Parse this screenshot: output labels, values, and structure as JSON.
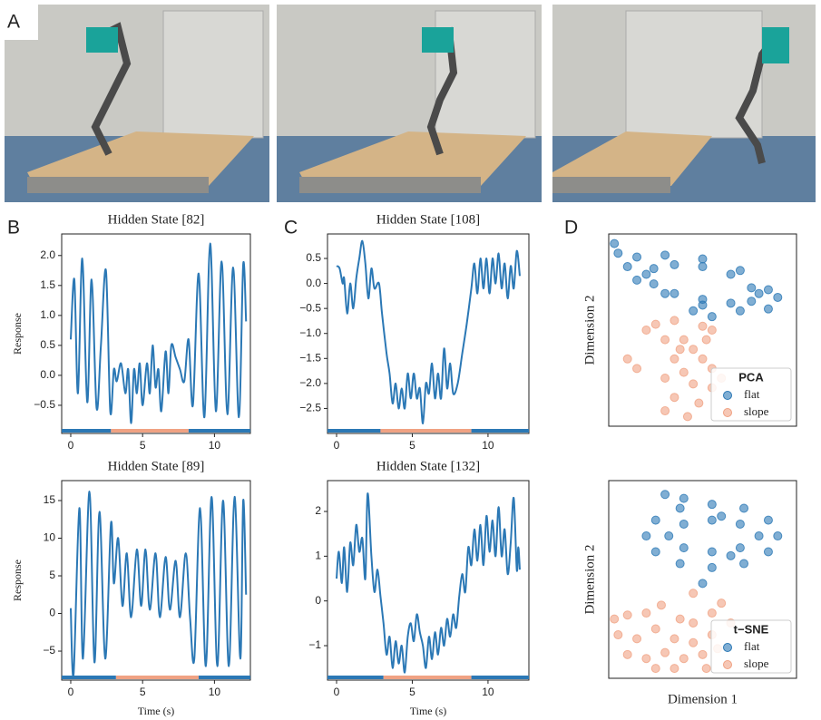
{
  "labels": [
    "A",
    "B",
    "C",
    "D"
  ],
  "chart_data": [
    {
      "type": "line",
      "title": "Hidden State [82]",
      "ylabel": "Response",
      "color": "#2b78b5",
      "x": [
        0,
        0.25,
        0.5,
        0.8,
        1.15,
        1.45,
        1.8,
        2.1,
        2.45,
        2.75,
        3.0,
        3.2,
        3.5,
        3.8,
        4.0,
        4.2,
        4.4,
        4.6,
        4.8,
        5.0,
        5.3,
        5.5,
        5.7,
        5.9,
        6.1,
        6.3,
        6.6,
        6.8,
        7.0,
        7.3,
        7.6,
        7.9,
        8.2,
        8.5,
        8.9,
        9.3,
        9.7,
        10.1,
        10.5,
        10.9,
        11.3,
        11.7,
        12.0,
        12.2
      ],
      "values": [
        0.6,
        1.6,
        -0.3,
        1.95,
        -0.45,
        1.6,
        -0.55,
        0.5,
        1.75,
        -0.6,
        0.1,
        -0.1,
        0.2,
        -0.3,
        0.1,
        -0.8,
        0.1,
        -0.3,
        0.2,
        -0.5,
        0.2,
        -0.3,
        0.5,
        -0.2,
        0.1,
        -0.6,
        0.4,
        -0.3,
        0.5,
        0.3,
        0.1,
        -0.1,
        0.6,
        -0.5,
        1.7,
        -0.7,
        2.2,
        -0.6,
        1.9,
        -0.65,
        1.8,
        -0.7,
        1.85,
        0.9
      ],
      "segments": [
        {
          "start": -0.63,
          "end": 2.8,
          "color": "#2b78b5"
        },
        {
          "start": 2.8,
          "end": 8.2,
          "color": "#f0a283"
        },
        {
          "start": 8.2,
          "end": 12.5,
          "color": "#2b78b5"
        }
      ],
      "xlim": [
        -0.63,
        12.5
      ],
      "ylim": [
        -0.97,
        2.36
      ],
      "xticks": [
        0,
        5,
        10
      ],
      "yticks": [
        {
          "value": -0.5,
          "label": "−0.5"
        },
        {
          "value": 0,
          "label": "0.0"
        },
        0.5,
        {
          "value": 1,
          "label": "1.0"
        },
        1.5,
        {
          "value": 2,
          "label": "2.0"
        }
      ]
    },
    {
      "type": "line",
      "title": "Hidden State [108]",
      "color": "#2b78b5",
      "x": [
        0,
        0.2,
        0.4,
        0.5,
        0.7,
        0.9,
        1.1,
        1.3,
        1.5,
        1.7,
        1.9,
        2.1,
        2.3,
        2.5,
        2.8,
        3.0,
        3.3,
        3.5,
        3.7,
        3.9,
        4.1,
        4.3,
        4.5,
        4.7,
        4.9,
        5.1,
        5.3,
        5.5,
        5.7,
        5.9,
        6.1,
        6.3,
        6.5,
        6.7,
        6.9,
        7.1,
        7.3,
        7.5,
        7.7,
        8.0,
        8.3,
        8.6,
        8.9,
        9.1,
        9.3,
        9.5,
        9.7,
        9.9,
        10.1,
        10.3,
        10.5,
        10.7,
        10.9,
        11.1,
        11.3,
        11.5,
        11.7,
        11.9,
        12.1
      ],
      "values": [
        0.35,
        0.3,
        0.0,
        0.1,
        -0.6,
        0.0,
        -0.5,
        0.1,
        0.5,
        0.85,
        0.4,
        -0.3,
        0.3,
        -0.1,
        0.0,
        -0.6,
        -1.4,
        -1.8,
        -2.4,
        -2.0,
        -2.5,
        -2.1,
        -2.5,
        -1.8,
        -2.3,
        -1.8,
        -2.3,
        -2.1,
        -2.8,
        -2.0,
        -2.2,
        -1.6,
        -2.3,
        -1.8,
        -2.3,
        -1.3,
        -2.1,
        -1.6,
        -2.2,
        -2.0,
        -1.4,
        -0.8,
        -0.1,
        0.4,
        -0.2,
        0.5,
        -0.1,
        0.5,
        -0.2,
        0.5,
        0.0,
        0.6,
        -0.1,
        0.4,
        -0.3,
        0.35,
        -0.1,
        0.65,
        0.15
      ],
      "segments": [
        {
          "start": -0.6,
          "end": 2.9,
          "color": "#2b78b5"
        },
        {
          "start": 2.9,
          "end": 8.9,
          "color": "#f0a283"
        },
        {
          "start": 8.9,
          "end": 12.7,
          "color": "#2b78b5"
        }
      ],
      "xlim": [
        -0.6,
        12.7
      ],
      "ylim": [
        -3.0,
        0.99
      ],
      "xticks": [
        0,
        5,
        10
      ],
      "yticks": [
        {
          "value": -2.5,
          "label": "−2.5"
        },
        {
          "value": -2,
          "label": "−2.0"
        },
        {
          "value": -1.5,
          "label": "−1.5"
        },
        {
          "value": -1,
          "label": "−1.0"
        },
        {
          "value": -0.5,
          "label": "−0.5"
        },
        {
          "value": 0,
          "label": "0.0"
        },
        0.5
      ]
    },
    {
      "type": "scatter",
      "ylabel": "Dimension 2",
      "legend_title": "PCA",
      "legend": "lower right",
      "xlim": [
        0,
        1
      ],
      "ylim": [
        0,
        1
      ],
      "series": [
        {
          "name": "flat",
          "color": "#2b78b5",
          "x": [
            0.9,
            0.85,
            0.7,
            0.5,
            0.3,
            0.15,
            0.1,
            0.15,
            0.3,
            0.5,
            0.7,
            0.85,
            0.8,
            0.76,
            0.65,
            0.5,
            0.35,
            0.24,
            0.2,
            0.24,
            0.35,
            0.5,
            0.65,
            0.76,
            0.03,
            0.05,
            0.55,
            0.45
          ],
          "values": [
            0.67,
            0.71,
            0.81,
            0.87,
            0.89,
            0.88,
            0.83,
            0.76,
            0.69,
            0.63,
            0.6,
            0.61,
            0.69,
            0.72,
            0.79,
            0.83,
            0.84,
            0.82,
            0.79,
            0.74,
            0.69,
            0.66,
            0.64,
            0.65,
            0.95,
            0.9,
            0.57,
            0.6
          ]
        },
        {
          "name": "slope",
          "color": "#f0a283",
          "x": [
            0.2,
            0.25,
            0.35,
            0.5,
            0.55,
            0.3,
            0.4,
            0.45,
            0.35,
            0.5,
            0.55,
            0.4,
            0.3,
            0.45,
            0.55,
            0.35,
            0.48,
            0.3,
            0.42,
            0.1,
            0.15,
            0.6,
            0.38,
            0.52
          ],
          "values": [
            0.5,
            0.53,
            0.55,
            0.52,
            0.5,
            0.45,
            0.45,
            0.4,
            0.35,
            0.35,
            0.3,
            0.28,
            0.25,
            0.22,
            0.2,
            0.15,
            0.12,
            0.08,
            0.05,
            0.35,
            0.3,
            0.25,
            0.4,
            0.45
          ]
        }
      ]
    },
    {
      "type": "line",
      "title": "Hidden State [89]",
      "ylabel": "Response",
      "xlabel": "Time (s)",
      "color": "#2b78b5",
      "x": [
        0,
        0.2,
        0.6,
        0.85,
        1.3,
        1.65,
        2.0,
        2.4,
        2.8,
        3.0,
        3.3,
        3.6,
        3.9,
        4.2,
        4.6,
        4.9,
        5.2,
        5.5,
        5.9,
        6.2,
        6.6,
        6.9,
        7.3,
        7.6,
        8.0,
        8.3,
        8.6,
        9.0,
        9.4,
        9.8,
        10.2,
        10.6,
        11.0,
        11.4,
        11.8,
        12.0,
        12.2
      ],
      "values": [
        0.7,
        -8,
        14,
        -6,
        16.2,
        -6.5,
        13.5,
        -6,
        12,
        4,
        10,
        1,
        8,
        -0.5,
        8.5,
        1,
        8.5,
        0.5,
        8,
        -0.5,
        7.5,
        0.5,
        7,
        -0.5,
        8,
        -0.5,
        -6,
        14,
        -7,
        15.5,
        -7,
        15,
        -7,
        15.5,
        -6,
        15,
        2.5
      ],
      "segments": [
        {
          "start": -0.63,
          "end": 3.15,
          "color": "#2b78b5"
        },
        {
          "start": 3.15,
          "end": 8.9,
          "color": "#f0a283"
        },
        {
          "start": 8.9,
          "end": 12.5,
          "color": "#2b78b5"
        }
      ],
      "xlim": [
        -0.63,
        12.5
      ],
      "ylim": [
        -8.85,
        17.65
      ],
      "xticks": [
        0,
        5,
        10
      ],
      "yticks": [
        {
          "value": -5,
          "label": "−5"
        },
        0,
        5,
        10,
        15
      ]
    },
    {
      "type": "line",
      "title": "Hidden State [132]",
      "xlabel": "Time (s)",
      "color": "#2b78b5",
      "x": [
        0,
        0.15,
        0.35,
        0.5,
        0.7,
        0.9,
        1.1,
        1.3,
        1.5,
        1.7,
        1.9,
        2.05,
        2.3,
        2.5,
        2.7,
        2.9,
        3.1,
        3.3,
        3.5,
        3.7,
        3.9,
        4.1,
        4.3,
        4.5,
        4.7,
        4.9,
        5.1,
        5.3,
        5.5,
        5.7,
        5.9,
        6.1,
        6.3,
        6.5,
        6.7,
        6.9,
        7.1,
        7.3,
        7.5,
        7.7,
        7.9,
        8.1,
        8.3,
        8.5,
        8.7,
        8.9,
        9.1,
        9.3,
        9.5,
        9.7,
        9.9,
        10.1,
        10.3,
        10.5,
        10.7,
        10.9,
        11.1,
        11.3,
        11.5,
        11.7,
        11.9,
        12.0,
        12.1
      ],
      "values": [
        0.5,
        1.1,
        0.4,
        1.2,
        0.2,
        1.3,
        0.8,
        1.7,
        1.1,
        1.4,
        0.5,
        2.4,
        1.0,
        0.2,
        0.7,
        0.1,
        -0.5,
        -1.2,
        -0.8,
        -1.5,
        -0.9,
        -1.4,
        -1.0,
        -1.6,
        -0.8,
        -0.5,
        -0.9,
        -0.3,
        -0.7,
        -1.0,
        -1.5,
        -0.8,
        -1.3,
        -0.7,
        -1.2,
        -0.6,
        -1.0,
        -0.4,
        -0.8,
        -0.3,
        -0.6,
        0.1,
        0.6,
        0.2,
        1.2,
        0.8,
        1.6,
        0.9,
        1.7,
        0.8,
        1.9,
        1.1,
        1.8,
        1.0,
        2.1,
        1.0,
        1.6,
        0.6,
        1.3,
        2.3,
        0.7,
        1.2,
        0.7
      ],
      "segments": [
        {
          "start": -0.6,
          "end": 3.1,
          "color": "#2b78b5"
        },
        {
          "start": 3.1,
          "end": 8.9,
          "color": "#f0a283"
        },
        {
          "start": 8.9,
          "end": 12.7,
          "color": "#2b78b5"
        }
      ],
      "xlim": [
        -0.6,
        12.7
      ],
      "ylim": [
        -1.77,
        2.69
      ],
      "xticks": [
        0,
        5,
        10
      ],
      "yticks": [
        {
          "value": -1,
          "label": "−1"
        },
        0,
        1,
        2
      ]
    },
    {
      "type": "scatter",
      "ylabel": "Dimension 2",
      "xlabel": "Dimension 1",
      "legend_title": "t−SNE",
      "legend": "lower right",
      "xlim": [
        0,
        1
      ],
      "ylim": [
        0,
        1
      ],
      "series": [
        {
          "name": "flat",
          "color": "#2b78b5",
          "x": [
            0.9,
            0.85,
            0.72,
            0.55,
            0.38,
            0.25,
            0.2,
            0.25,
            0.38,
            0.55,
            0.72,
            0.85,
            0.8,
            0.7,
            0.55,
            0.4,
            0.32,
            0.4,
            0.55,
            0.7,
            0.3,
            0.4,
            0.6,
            0.65,
            0.5
          ],
          "values": [
            0.72,
            0.8,
            0.86,
            0.88,
            0.86,
            0.8,
            0.72,
            0.64,
            0.58,
            0.56,
            0.58,
            0.64,
            0.72,
            0.78,
            0.8,
            0.78,
            0.72,
            0.66,
            0.64,
            0.66,
            0.93,
            0.91,
            0.82,
            0.62,
            0.48
          ]
        },
        {
          "name": "slope",
          "color": "#f0a283",
          "x": [
            0.03,
            0.1,
            0.2,
            0.28,
            0.38,
            0.45,
            0.55,
            0.6,
            0.05,
            0.15,
            0.25,
            0.35,
            0.45,
            0.55,
            0.1,
            0.2,
            0.3,
            0.4,
            0.5,
            0.58,
            0.65,
            0.25,
            0.35,
            0.45,
            0.52
          ],
          "values": [
            0.3,
            0.32,
            0.33,
            0.37,
            0.3,
            0.28,
            0.33,
            0.38,
            0.22,
            0.2,
            0.25,
            0.2,
            0.18,
            0.22,
            0.12,
            0.1,
            0.13,
            0.1,
            0.12,
            0.15,
            0.28,
            0.05,
            0.05,
            0.43,
            0.05
          ]
        }
      ]
    }
  ]
}
